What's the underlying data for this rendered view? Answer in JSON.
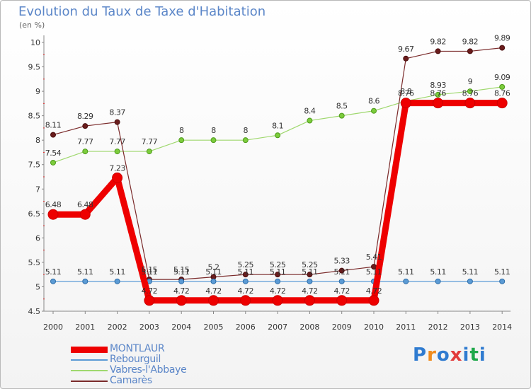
{
  "header": {
    "title": "Evolution du Taux de Taxe d'Habitation",
    "unit": "(en %)"
  },
  "logo": {
    "text": "Proxiti",
    "colors": [
      "#2f7bd0",
      "#f08c1e",
      "#2f7bd0",
      "#e23b3b",
      "#2f7bd0",
      "#1fa84a",
      "#2f7bd0"
    ]
  },
  "chart_data": {
    "type": "line",
    "title": "Evolution du Taux de Taxe d'Habitation",
    "ylabel": "(en %)",
    "x": [
      "2000",
      "2001",
      "2002",
      "2003",
      "2004",
      "2005",
      "2006",
      "2007",
      "2008",
      "2009",
      "2010",
      "2011",
      "2012",
      "2013",
      "2014"
    ],
    "ylim": [
      4.5,
      10
    ],
    "yticks": [
      "4.5",
      "5",
      "5.5",
      "6",
      "6.5",
      "7",
      "7.5",
      "8",
      "8.5",
      "9",
      "9.5",
      "10"
    ],
    "grid": false,
    "legend": "bottom-left",
    "series": [
      {
        "name": "MONTLAUR",
        "color": "#ee0000",
        "values": [
          6.48,
          6.48,
          7.23,
          4.72,
          4.72,
          4.72,
          4.72,
          4.72,
          4.72,
          4.72,
          4.72,
          8.76,
          8.76,
          8.76,
          8.76
        ],
        "labels": [
          "6.48",
          "6.48",
          "7.23",
          "4.72",
          "4.72",
          "4.72",
          "4.72",
          "4.72",
          "4.72",
          "4.72",
          "4.72",
          "8.76",
          "8.76",
          "8.76",
          "8.76"
        ]
      },
      {
        "name": "Rebourguil",
        "color": "#5b9bd5",
        "values": [
          5.11,
          5.11,
          5.11,
          5.11,
          5.11,
          5.11,
          5.11,
          5.11,
          5.11,
          5.11,
          5.11,
          5.11,
          5.11,
          5.11,
          5.11
        ],
        "labels": [
          "5.11",
          "5.11",
          "5.11",
          "5.11",
          "5.11",
          "5.11",
          "5.11",
          "5.11",
          "5.11",
          "5.11",
          "5.11",
          "5.11",
          "5.11",
          "5.11",
          "5.11"
        ]
      },
      {
        "name": "Vabres-l'Abbaye",
        "color": "#8fd45a",
        "values": [
          7.54,
          7.77,
          7.77,
          7.77,
          8,
          8,
          8,
          8.1,
          8.4,
          8.5,
          8.6,
          8.8,
          8.93,
          9,
          9.09
        ],
        "labels": [
          "7.54",
          "7.77",
          "7.77",
          "7.77",
          "8",
          "8",
          "8",
          "8.1",
          "8.4",
          "8.5",
          "8.6",
          "8.8",
          "8.93",
          "9",
          "9.09"
        ]
      },
      {
        "name": "Camarès",
        "color": "#7a2a2a",
        "values": [
          8.11,
          8.29,
          8.37,
          5.15,
          5.15,
          5.2,
          5.25,
          5.25,
          5.25,
          5.33,
          5.41,
          9.67,
          9.82,
          9.82,
          9.89
        ],
        "labels": [
          "8.11",
          "8.29",
          "8.37",
          "5.15",
          "5.15",
          "5.2",
          "5.25",
          "5.25",
          "5.25",
          "5.33",
          "5.41",
          "9.67",
          "9.82",
          "9.82",
          "9.89"
        ]
      }
    ]
  }
}
